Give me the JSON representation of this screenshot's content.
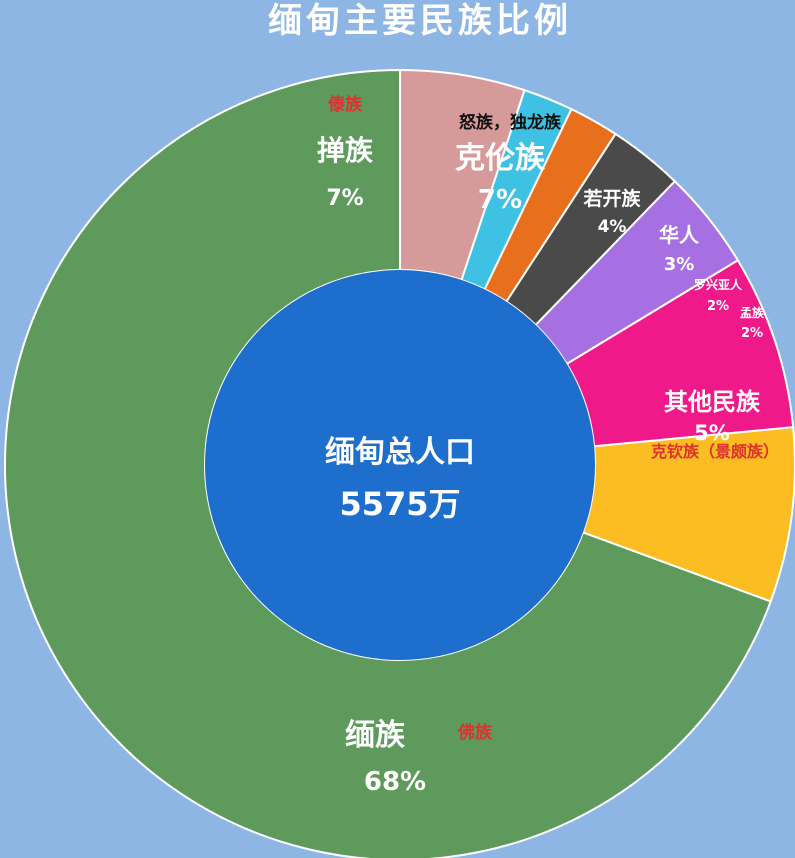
{
  "chart_data": {
    "type": "donut",
    "title": "缅甸主要民族比例",
    "center_label": "缅甸总人口",
    "center_value": "5575万",
    "slices": [
      {
        "name": "缅族",
        "value": 68,
        "label": "68%",
        "color": "#5e9a5c",
        "note": "佛族"
      },
      {
        "name": "掸族",
        "value": 7,
        "label": "7%",
        "color": "#fbbd21",
        "note": "傣族"
      },
      {
        "name": "克伦族",
        "value": 7,
        "label": "7%",
        "color": "#f0198a",
        "note": "怒族，独龙族"
      },
      {
        "name": "若开族",
        "value": 4,
        "label": "4%",
        "color": "#a66fe2"
      },
      {
        "name": "华人",
        "value": 3,
        "label": "3%",
        "color": "#4a4a4a"
      },
      {
        "name": "罗兴亚人",
        "value": 2,
        "label": "2%",
        "color": "#e8701c"
      },
      {
        "name": "孟族",
        "value": 2,
        "label": "2%",
        "color": "#3fc1e3"
      },
      {
        "name": "其他民族",
        "value": 5,
        "label": "5%",
        "color": "#d79a9a",
        "note": "克钦族（景颇族）"
      }
    ],
    "start_angle_deg": 90,
    "direction": "counterclockwise"
  },
  "colors": {
    "background": "#8db6e4",
    "center_circle": "#1e6fcd",
    "separator": "#ffffff"
  }
}
